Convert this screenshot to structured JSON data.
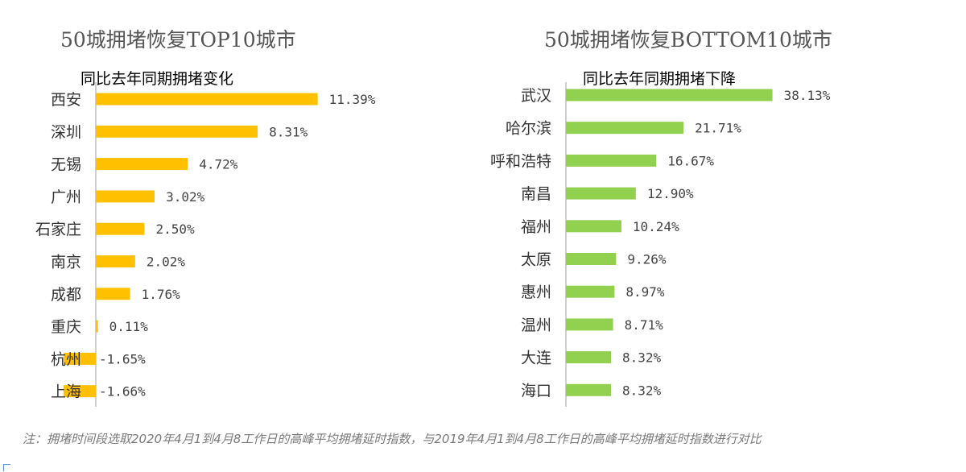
{
  "chart_data": [
    {
      "type": "bar",
      "orientation": "horizontal",
      "title": "50城拥堵恢复TOP10城市",
      "subtitle": "同比去年同期拥堵变化",
      "categories": [
        "西安",
        "深圳",
        "无锡",
        "广州",
        "石家庄",
        "南京",
        "成都",
        "重庆",
        "杭州",
        "上海"
      ],
      "values": [
        11.39,
        8.31,
        4.72,
        3.02,
        2.5,
        2.02,
        1.76,
        0.11,
        -1.65,
        -1.66
      ],
      "labels": [
        "11.39%",
        "8.31%",
        "4.72%",
        "3.02%",
        "2.50%",
        "2.02%",
        "1.76%",
        "0.11%",
        "-1.65%",
        "-1.66%"
      ],
      "unit": "%",
      "color": "#ffc000",
      "grid": false,
      "legend": "none"
    },
    {
      "type": "bar",
      "orientation": "horizontal",
      "title": "50城拥堵恢复BOTTOM10城市",
      "subtitle": "同比去年同期拥堵下降",
      "categories": [
        "武汉",
        "哈尔滨",
        "呼和浩特",
        "南昌",
        "福州",
        "太原",
        "惠州",
        "温州",
        "大连",
        "海口"
      ],
      "values": [
        38.13,
        21.71,
        16.67,
        12.9,
        10.24,
        9.26,
        8.97,
        8.71,
        8.32,
        8.32
      ],
      "labels": [
        "38.13%",
        "21.71%",
        "16.67%",
        "12.90%",
        "10.24%",
        "9.26%",
        "8.97%",
        "8.71%",
        "8.32%",
        "8.32%"
      ],
      "unit": "%",
      "color": "#92d050",
      "grid": false,
      "legend": "none"
    }
  ],
  "footnote": "注：拥堵时间段选取2020年4月1到4月8工作日的高峰平均拥堵延时指数，与2019年4月1到4月8工作日的高峰平均拥堵延时指数进行对比"
}
